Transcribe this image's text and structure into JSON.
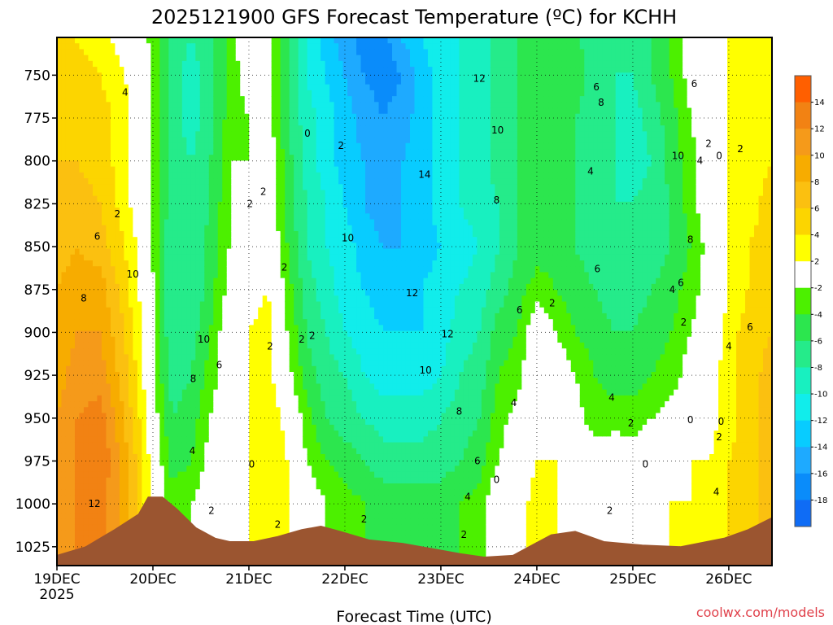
{
  "chart_data": {
    "type": "heatmap",
    "title": "2025121900 GFS Forecast Temperature (ºC) for KCHH",
    "xlabel": "Forecast Time (UTC)",
    "ylabel": "",
    "credit": "coolwx.com/models",
    "x_ticks": [
      {
        "label": "19DEC",
        "sublabel": "2025",
        "day": 0
      },
      {
        "label": "20DEC",
        "day": 1
      },
      {
        "label": "21DEC",
        "day": 2
      },
      {
        "label": "22DEC",
        "day": 3
      },
      {
        "label": "23DEC",
        "day": 4
      },
      {
        "label": "24DEC",
        "day": 5
      },
      {
        "label": "25DEC",
        "day": 6
      },
      {
        "label": "26DEC",
        "day": 7
      }
    ],
    "xlim": [
      0,
      7.45
    ],
    "y_ticks": [
      750,
      775,
      800,
      825,
      850,
      875,
      900,
      925,
      950,
      975,
      1000,
      1025
    ],
    "ylim_hpa": [
      1036,
      728
    ],
    "colorbar": {
      "labels": [
        "14",
        "12",
        "10",
        "8",
        "6",
        "4",
        "2",
        "-2",
        "-4",
        "-6",
        "-8",
        "-10",
        "-12",
        "-14",
        "-16",
        "-18"
      ],
      "bins": [
        {
          "min": 14,
          "max": 16,
          "color": "#ff5f00"
        },
        {
          "min": 12,
          "max": 14,
          "color": "#f28213"
        },
        {
          "min": 10,
          "max": 12,
          "color": "#f59a1a"
        },
        {
          "min": 8,
          "max": 10,
          "color": "#f7ac00"
        },
        {
          "min": 6,
          "max": 8,
          "color": "#fbc010"
        },
        {
          "min": 4,
          "max": 6,
          "color": "#fcd500"
        },
        {
          "min": 2,
          "max": 4,
          "color": "#ffff00"
        },
        {
          "min": -2,
          "max": 2,
          "color": "#ffffff"
        },
        {
          "min": -4,
          "max": -2,
          "color": "#4cf000"
        },
        {
          "min": -6,
          "max": -4,
          "color": "#2ce64e"
        },
        {
          "min": -8,
          "max": -6,
          "color": "#25eb8a"
        },
        {
          "min": -10,
          "max": -8,
          "color": "#18f0c0"
        },
        {
          "min": -12,
          "max": -10,
          "color": "#11edeb"
        },
        {
          "min": -14,
          "max": -12,
          "color": "#08ccff"
        },
        {
          "min": -16,
          "max": -14,
          "color": "#1eaaff"
        },
        {
          "min": -18,
          "max": -16,
          "color": "#0a8cfa"
        },
        {
          "min": -20,
          "max": -18,
          "color": "#0f6cf5"
        }
      ]
    },
    "terrain_color": "#9b5530",
    "surface_pressure": [
      [
        0,
        1030
      ],
      [
        0.3,
        1025
      ],
      [
        0.6,
        1015
      ],
      [
        0.85,
        1006
      ],
      [
        0.95,
        996
      ],
      [
        1.1,
        996
      ],
      [
        1.25,
        1003
      ],
      [
        1.45,
        1014
      ],
      [
        1.65,
        1020
      ],
      [
        1.8,
        1022
      ],
      [
        2.05,
        1022
      ],
      [
        2.3,
        1019
      ],
      [
        2.55,
        1015
      ],
      [
        2.75,
        1013
      ],
      [
        2.95,
        1016
      ],
      [
        3.25,
        1021
      ],
      [
        3.6,
        1023
      ],
      [
        3.9,
        1026
      ],
      [
        4.2,
        1029
      ],
      [
        4.45,
        1031
      ],
      [
        4.75,
        1030
      ],
      [
        4.95,
        1024
      ],
      [
        5.15,
        1018
      ],
      [
        5.4,
        1016
      ],
      [
        5.7,
        1022
      ],
      [
        6.1,
        1024
      ],
      [
        6.5,
        1025
      ],
      [
        6.95,
        1020
      ],
      [
        7.2,
        1015
      ],
      [
        7.45,
        1008
      ]
    ],
    "temperature_grid": {
      "description": "Temperature (degC) estimated at sample days x pressure levels",
      "days": [
        0,
        0.2,
        0.45,
        0.7,
        0.9,
        1.05,
        1.2,
        1.4,
        1.6,
        1.8,
        2.0,
        2.2,
        2.4,
        2.6,
        2.8,
        3.0,
        3.2,
        3.4,
        3.6,
        3.8,
        4.0,
        4.2,
        4.4,
        4.6,
        4.8,
        5.0,
        5.2,
        5.4,
        5.6,
        5.8,
        6.0,
        6.2,
        6.4,
        6.6,
        6.8,
        7.0,
        7.2,
        7.45
      ],
      "levels": [
        730,
        750,
        775,
        800,
        825,
        850,
        875,
        900,
        925,
        950,
        975,
        1000,
        1030
      ],
      "rows": [
        [
          4,
          4,
          3,
          1,
          -1,
          -4,
          -7,
          -8,
          -7,
          -3,
          0,
          -1,
          -6,
          -10,
          -13,
          -15,
          -17,
          -17,
          -14,
          -12,
          -11,
          -10,
          -9,
          -7,
          -6,
          -6,
          -6,
          -5,
          -8,
          -8,
          -7,
          -6,
          -4,
          -1,
          1,
          2,
          3,
          3
        ],
        [
          5,
          5,
          4,
          2,
          0,
          -4,
          -7,
          -9,
          -7,
          -3,
          -1,
          -1,
          -6,
          -10,
          -12,
          -14,
          -16,
          -17,
          -16,
          -13,
          -11,
          -10,
          -9,
          -7,
          -6,
          -6,
          -6,
          -5,
          -7,
          -8,
          -8,
          -6,
          -4,
          -1,
          1,
          2,
          3,
          4
        ],
        [
          5,
          6,
          5,
          3,
          0,
          -4,
          -7,
          -9,
          -7,
          -3,
          -2,
          -1,
          -6,
          -9,
          -11,
          -13,
          -15,
          -16,
          -15,
          -13,
          -11,
          -10,
          -9,
          -7,
          -6,
          -6,
          -6,
          -6,
          -7,
          -8,
          -9,
          -7,
          -5,
          -2,
          0,
          2,
          3,
          4
        ],
        [
          6,
          6,
          5,
          3,
          0,
          -4,
          -7,
          -8,
          -6,
          -2,
          -2,
          0,
          -5,
          -9,
          -11,
          -13,
          -14,
          -15,
          -14,
          -13,
          -11,
          -10,
          -9,
          -7,
          -6,
          -5,
          -5,
          -6,
          -7,
          -8,
          -9,
          -8,
          -5,
          -3,
          0,
          2,
          3,
          4
        ],
        [
          6,
          7,
          6,
          3,
          0,
          -4,
          -7,
          -8,
          -6,
          -2,
          -1,
          0,
          -5,
          -8,
          -10,
          -12,
          -14,
          -15,
          -14,
          -13,
          -11,
          -10,
          -9,
          -8,
          -6,
          -5,
          -5,
          -6,
          -7,
          -8,
          -8,
          -7,
          -6,
          -3,
          0,
          2,
          3,
          5
        ],
        [
          7,
          8,
          7,
          4,
          1,
          -4,
          -8,
          -8,
          -5,
          -2,
          1,
          1,
          -4,
          -8,
          -10,
          -11,
          -13,
          -14,
          -14,
          -13,
          -12,
          -11,
          -10,
          -8,
          -6,
          -5,
          -5,
          -6,
          -7,
          -8,
          -8,
          -7,
          -6,
          -4,
          -1,
          2,
          4,
          5
        ],
        [
          8,
          9,
          9,
          5,
          1,
          -3,
          -8,
          -8,
          -5,
          -1,
          1,
          2,
          -3,
          -7,
          -9,
          -11,
          -12,
          -13,
          -13,
          -12,
          -11,
          -10,
          -9,
          -7,
          -5,
          -3,
          -4,
          -5,
          -6,
          -7,
          -7,
          -6,
          -5,
          -3,
          -1,
          2,
          4,
          6
        ],
        [
          8,
          10,
          10,
          6,
          2,
          -3,
          -8,
          -7,
          -4,
          0,
          2,
          3,
          -2,
          -6,
          -8,
          -10,
          -11,
          -12,
          -12,
          -12,
          -11,
          -9,
          -8,
          -5,
          -4,
          0,
          -2,
          -4,
          -5,
          -6,
          -6,
          -5,
          -4,
          -2,
          0,
          3,
          5,
          6
        ],
        [
          9,
          11,
          11,
          7,
          2,
          -3,
          -7,
          -6,
          -3,
          0,
          2,
          3,
          -1,
          -5,
          -7,
          -8,
          -10,
          -11,
          -11,
          -11,
          -10,
          -8,
          -7,
          -4,
          -3,
          1,
          0,
          -2,
          -4,
          -5,
          -5,
          -4,
          -3,
          -1,
          1,
          3,
          5,
          7
        ],
        [
          10,
          12,
          13,
          8,
          3,
          -2,
          -6,
          -5,
          -2,
          0,
          2,
          4,
          1,
          -3,
          -6,
          -7,
          -8,
          -9,
          -9,
          -9,
          -8,
          -7,
          -6,
          -3,
          -1,
          1,
          1,
          -1,
          -3,
          -3,
          -3,
          -2,
          -1,
          0,
          1,
          3,
          5,
          7
        ],
        [
          10,
          12,
          14,
          9,
          4,
          -1,
          -5,
          -4,
          -1,
          0,
          2,
          4,
          2,
          -2,
          -4,
          -5,
          -6,
          -7,
          -7,
          -7,
          -7,
          -6,
          -5,
          -2,
          0,
          2,
          2,
          0,
          -1,
          0,
          -1,
          0,
          1,
          2,
          2,
          4,
          5,
          7
        ],
        [
          10,
          12,
          13,
          9,
          4,
          0,
          -3,
          -2,
          0,
          0,
          2,
          3,
          2,
          0,
          -2,
          -3,
          -4,
          -5,
          -5,
          -5,
          -5,
          -4,
          -3,
          0,
          1,
          3,
          2,
          1,
          1,
          2,
          1,
          1,
          2,
          2,
          3,
          4,
          5,
          7
        ],
        [
          10,
          12,
          13,
          9,
          4,
          0,
          -3,
          -2,
          0,
          0,
          2,
          3,
          2,
          0,
          -2,
          -3,
          -4,
          -5,
          -5,
          -5,
          -5,
          -4,
          -3,
          0,
          1,
          3,
          2,
          1,
          1,
          2,
          1,
          1,
          2,
          2,
          3,
          4,
          5,
          7
        ]
      ]
    },
    "contour_labels": [
      {
        "day": 0.71,
        "p": 760,
        "text": "4"
      },
      {
        "day": 0.63,
        "p": 831,
        "text": "2"
      },
      {
        "day": 0.42,
        "p": 844,
        "text": "6"
      },
      {
        "day": 0.79,
        "p": 866,
        "text": "10"
      },
      {
        "day": 0.28,
        "p": 880,
        "text": "8"
      },
      {
        "day": 0.39,
        "p": 1000,
        "text": "12"
      },
      {
        "day": 1.53,
        "p": 904,
        "text": "10"
      },
      {
        "day": 1.42,
        "p": 927,
        "text": "8"
      },
      {
        "day": 1.69,
        "p": 919,
        "text": "6"
      },
      {
        "day": 1.41,
        "p": 969,
        "text": "4"
      },
      {
        "day": 1.61,
        "p": 1004,
        "text": "2"
      },
      {
        "day": 2.01,
        "p": 825,
        "text": "2"
      },
      {
        "day": 2.22,
        "p": 908,
        "text": "2"
      },
      {
        "day": 2.3,
        "p": 1012,
        "text": "2"
      },
      {
        "day": 2.03,
        "p": 977,
        "text": "0"
      },
      {
        "day": 2.15,
        "p": 818,
        "text": "2"
      },
      {
        "day": 2.55,
        "p": 904,
        "text": "2"
      },
      {
        "day": 2.66,
        "p": 902,
        "text": "2"
      },
      {
        "day": 2.37,
        "p": 862,
        "text": "2"
      },
      {
        "day": 2.61,
        "p": 784,
        "text": "0"
      },
      {
        "day": 2.96,
        "p": 791,
        "text": "2"
      },
      {
        "day": 3.03,
        "p": 845,
        "text": "10"
      },
      {
        "day": 3.2,
        "p": 1009,
        "text": "2"
      },
      {
        "day": 3.83,
        "p": 808,
        "text": "14"
      },
      {
        "day": 3.7,
        "p": 877,
        "text": "12"
      },
      {
        "day": 4.07,
        "p": 901,
        "text": "12"
      },
      {
        "day": 3.84,
        "p": 922,
        "text": "10"
      },
      {
        "day": 4.19,
        "p": 946,
        "text": "8"
      },
      {
        "day": 4.38,
        "p": 975,
        "text": "6"
      },
      {
        "day": 4.28,
        "p": 996,
        "text": "4"
      },
      {
        "day": 4.24,
        "p": 1018,
        "text": "2"
      },
      {
        "day": 4.4,
        "p": 752,
        "text": "12"
      },
      {
        "day": 4.59,
        "p": 782,
        "text": "10"
      },
      {
        "day": 4.58,
        "p": 823,
        "text": "8"
      },
      {
        "day": 4.82,
        "p": 887,
        "text": "6"
      },
      {
        "day": 4.76,
        "p": 941,
        "text": "4"
      },
      {
        "day": 4.58,
        "p": 986,
        "text": "0"
      },
      {
        "day": 5.16,
        "p": 883,
        "text": "2"
      },
      {
        "day": 5.62,
        "p": 757,
        "text": "6"
      },
      {
        "day": 5.67,
        "p": 766,
        "text": "8"
      },
      {
        "day": 5.56,
        "p": 806,
        "text": "4"
      },
      {
        "day": 5.63,
        "p": 863,
        "text": "6"
      },
      {
        "day": 5.78,
        "p": 938,
        "text": "4"
      },
      {
        "day": 5.76,
        "p": 1004,
        "text": "2"
      },
      {
        "day": 5.98,
        "p": 953,
        "text": "2"
      },
      {
        "day": 6.13,
        "p": 977,
        "text": "0"
      },
      {
        "day": 6.47,
        "p": 797,
        "text": "10"
      },
      {
        "day": 6.6,
        "p": 846,
        "text": "8"
      },
      {
        "day": 6.5,
        "p": 871,
        "text": "6"
      },
      {
        "day": 6.41,
        "p": 875,
        "text": "4"
      },
      {
        "day": 6.53,
        "p": 894,
        "text": "2"
      },
      {
        "day": 6.64,
        "p": 755,
        "text": "6"
      },
      {
        "day": 6.79,
        "p": 790,
        "text": "2"
      },
      {
        "day": 6.7,
        "p": 800,
        "text": "4"
      },
      {
        "day": 6.9,
        "p": 797,
        "text": "0"
      },
      {
        "day": 7.12,
        "p": 793,
        "text": "2"
      },
      {
        "day": 6.6,
        "p": 951,
        "text": "0"
      },
      {
        "day": 6.92,
        "p": 952,
        "text": "0"
      },
      {
        "day": 6.9,
        "p": 961,
        "text": "2"
      },
      {
        "day": 7.0,
        "p": 908,
        "text": "4"
      },
      {
        "day": 7.22,
        "p": 897,
        "text": "6"
      },
      {
        "day": 6.87,
        "p": 993,
        "text": "4"
      }
    ]
  }
}
